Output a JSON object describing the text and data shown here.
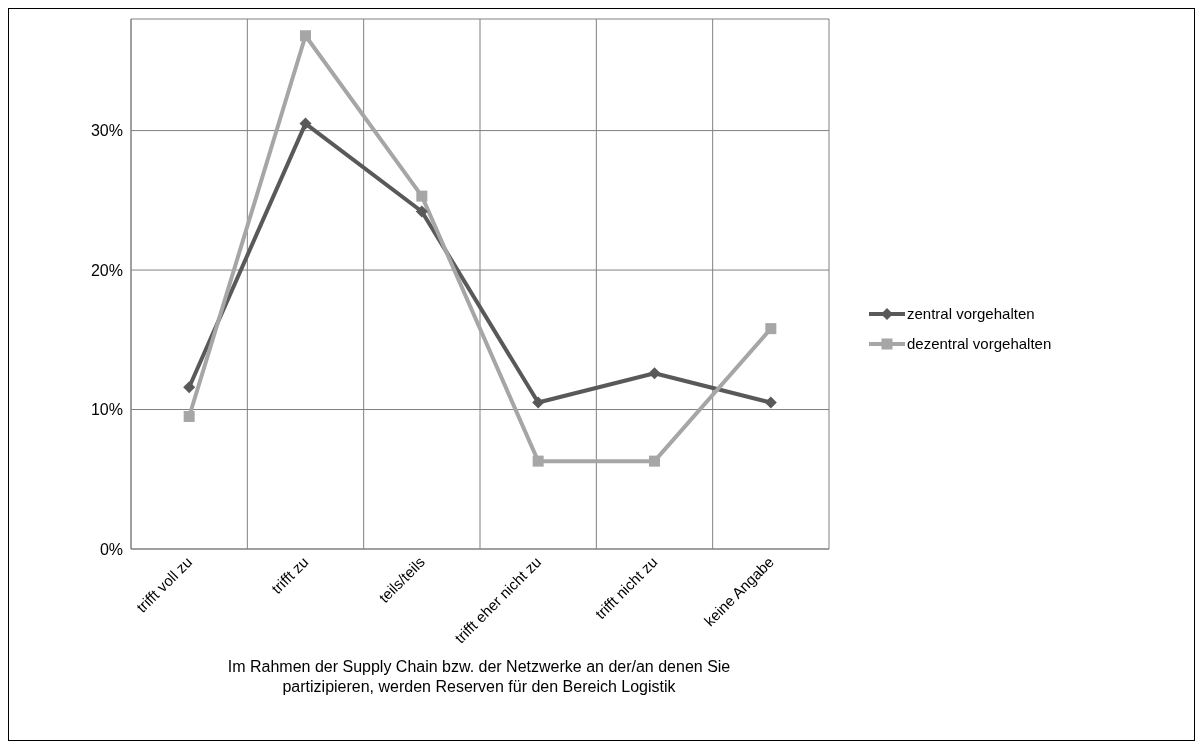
{
  "chart_data": {
    "type": "line",
    "xlabel": "Im Rahmen der Supply Chain bzw. der Netzwerke an der/an denen Sie partizipieren, werden Reserven für den Bereich Logistik",
    "categories": [
      "trifft voll zu",
      "trifft zu",
      "teils/teils",
      "trifft eher nicht zu",
      "trifft nicht zu",
      "keine Angabe"
    ],
    "series": [
      {
        "name": "zentral vorgehalten",
        "color": "#595959",
        "marker": "diamond",
        "values": [
          11.6,
          30.5,
          24.2,
          10.5,
          12.6,
          10.5
        ]
      },
      {
        "name": "dezentral vorgehalten",
        "color": "#a6a6a6",
        "marker": "square",
        "values": [
          9.5,
          36.8,
          25.3,
          6.3,
          6.3,
          15.8
        ]
      }
    ],
    "ylim": [
      0,
      38
    ],
    "yticks": [
      {
        "value": 0,
        "label": "0%"
      },
      {
        "value": 10,
        "label": "10%"
      },
      {
        "value": 20,
        "label": "20%"
      },
      {
        "value": 30,
        "label": "30%"
      }
    ],
    "grid": true,
    "legend": "right",
    "line_style": "solid"
  }
}
